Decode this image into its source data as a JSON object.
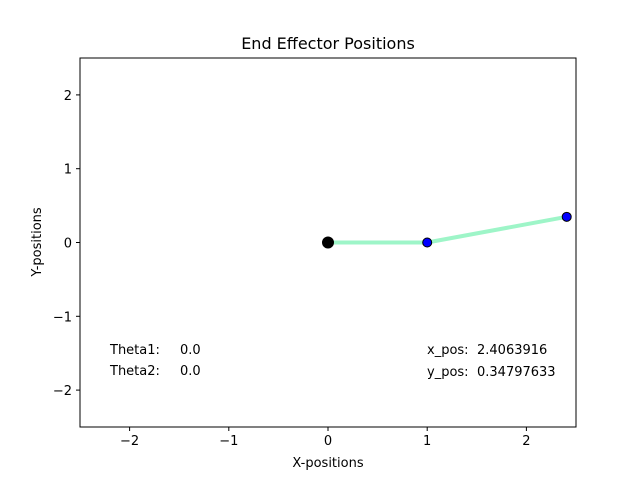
{
  "chart_data": {
    "type": "line",
    "title": "End Effector Positions",
    "xlabel": "X-positions",
    "ylabel": "Y-positions",
    "xlim": [
      -2.5,
      2.5
    ],
    "ylim": [
      -2.5,
      2.5
    ],
    "grid": false,
    "x_ticks": [
      -2,
      -1,
      0,
      1,
      2
    ],
    "y_ticks": [
      2,
      1,
      0,
      -1,
      -2
    ],
    "x_tick_labels": [
      "−2",
      "−1",
      "0",
      "1",
      "2"
    ],
    "y_tick_labels": [
      "2",
      "1",
      "0",
      "−1",
      "−2"
    ],
    "series": [
      {
        "x": [
          0,
          1,
          2.4063916
        ],
        "y": [
          0,
          0,
          0.34797633
        ]
      }
    ],
    "base_point": {
      "x": 0,
      "y": 0
    },
    "joint_points": [
      {
        "x": 1,
        "y": 0
      },
      {
        "x": 2.4063916,
        "y": 0.34797633
      }
    ],
    "annotations": {
      "theta1_label": "Theta1:",
      "theta1_value": "0.0",
      "theta2_label": "Theta2:",
      "theta2_value": "0.0",
      "xpos_label": "x_pos:",
      "xpos_value": "2.4063916",
      "ypos_label": "y_pos:",
      "ypos_value": "0.34797633"
    },
    "colors": {
      "link": "#9ef5c8",
      "joint_fill": "#0000ff",
      "joint_edge": "#000000",
      "base": "#000000"
    }
  }
}
